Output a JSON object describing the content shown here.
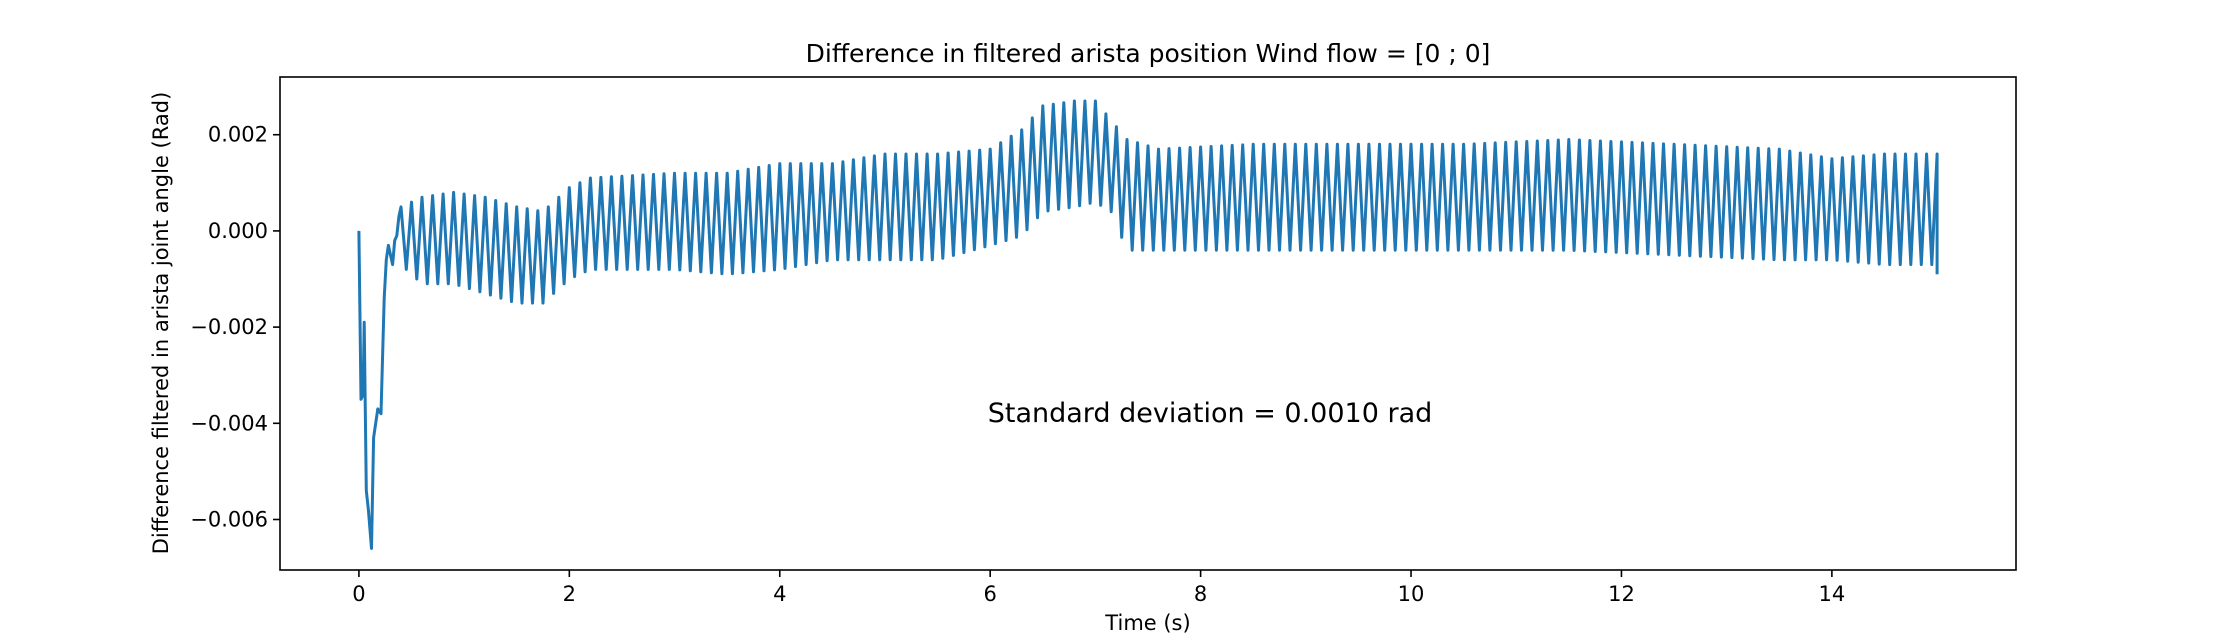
{
  "chart_data": {
    "type": "line",
    "title": "Difference in filtered arista position Wind flow = [0 ; 0]",
    "xlabel": "Time (s)",
    "ylabel": "Difference filtered in arista joint angle (Rad)",
    "annotation": "Standard deviation = 0.0010 rad",
    "xlim": [
      -0.75,
      15.75
    ],
    "ylim": [
      -0.00705,
      0.0032
    ],
    "xticks": [
      0,
      2,
      4,
      6,
      8,
      10,
      12,
      14
    ],
    "xtick_labels": [
      "0",
      "2",
      "4",
      "6",
      "8",
      "10",
      "12",
      "14"
    ],
    "yticks": [
      -0.006,
      -0.004,
      -0.002,
      0.0,
      0.002
    ],
    "ytick_labels": [
      "−0.006",
      "−0.004",
      "−0.002",
      "0.000",
      "0.002"
    ],
    "grid": false,
    "legend": "none",
    "series_color": "#1f77b4",
    "oscillation": {
      "period_s": 0.1,
      "start_s": 0.4,
      "end_s": 15.0,
      "envelope": {
        "t": [
          0.4,
          0.6,
          0.9,
          1.2,
          1.5,
          1.75,
          2.0,
          2.2,
          3.0,
          3.5,
          4.0,
          4.5,
          5.0,
          5.5,
          6.0,
          6.3,
          6.5,
          6.8,
          7.0,
          7.15,
          7.3,
          7.6,
          8.5,
          9.5,
          10.5,
          11.5,
          12.5,
          13.5,
          14.0,
          14.5,
          14.9
        ],
        "upper": [
          0.0005,
          0.0007,
          0.0008,
          0.0007,
          0.0005,
          0.0004,
          0.0009,
          0.0011,
          0.0012,
          0.0012,
          0.0014,
          0.0014,
          0.0016,
          0.0016,
          0.0017,
          0.0021,
          0.0026,
          0.0027,
          0.0027,
          0.0023,
          0.0019,
          0.0017,
          0.0018,
          0.0018,
          0.0018,
          0.0019,
          0.0018,
          0.0017,
          0.0015,
          0.0016,
          0.0016
        ],
        "lower": [
          -0.0007,
          -0.0011,
          -0.0011,
          -0.0013,
          -0.0015,
          -0.0015,
          -0.001,
          -0.0008,
          -0.0008,
          -0.0009,
          -0.0008,
          -0.0006,
          -0.0006,
          -0.0006,
          -0.0003,
          -0.0001,
          0.0004,
          0.0005,
          0.0006,
          0.0004,
          -0.0004,
          -0.0004,
          -0.0004,
          -0.0004,
          -0.0004,
          -0.0004,
          -0.0005,
          -0.0006,
          -0.0006,
          -0.0007,
          -0.0007
        ]
      }
    },
    "transient": {
      "t": [
        0.0,
        0.02,
        0.04,
        0.05,
        0.07,
        0.09,
        0.12,
        0.14,
        0.16,
        0.18,
        0.21,
        0.24,
        0.26,
        0.28,
        0.3,
        0.32,
        0.34,
        0.36,
        0.38,
        0.4
      ],
      "y": [
        0.0,
        -0.0035,
        -0.0034,
        -0.0019,
        -0.0054,
        -0.0058,
        -0.0066,
        -0.0043,
        -0.004,
        -0.0037,
        -0.0038,
        -0.0014,
        -0.0006,
        -0.0003,
        -0.0005,
        -0.0007,
        -0.0002,
        -0.0001,
        0.0003,
        0.0005
      ]
    },
    "end_point": {
      "t": 15.0,
      "y": -0.0009
    }
  }
}
